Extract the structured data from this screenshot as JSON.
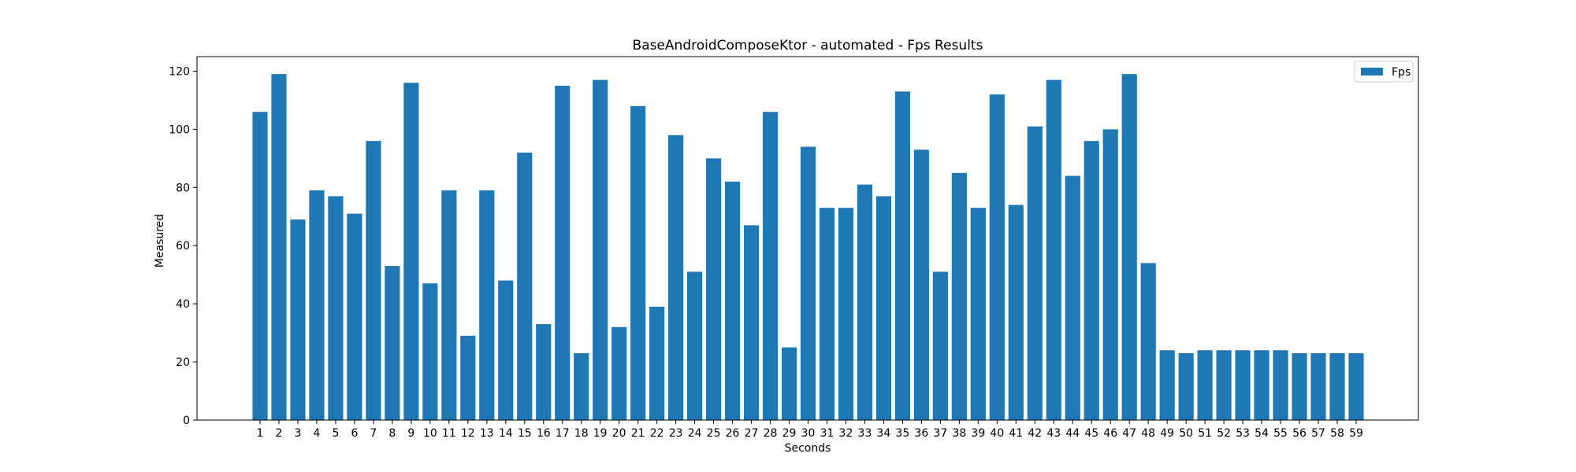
{
  "chart_data": {
    "type": "bar",
    "title": "BaseAndroidComposeKtor - automated - Fps Results",
    "xlabel": "Seconds",
    "ylabel": "Measured",
    "ylim": [
      0,
      125
    ],
    "yticks": [
      0,
      20,
      40,
      60,
      80,
      100,
      120
    ],
    "grid": false,
    "legend_position": "top-right",
    "bar_color": "#1f77b4",
    "categories": [
      "1",
      "2",
      "3",
      "4",
      "5",
      "6",
      "7",
      "8",
      "9",
      "10",
      "11",
      "12",
      "13",
      "14",
      "15",
      "16",
      "17",
      "18",
      "19",
      "20",
      "21",
      "22",
      "23",
      "24",
      "25",
      "26",
      "27",
      "28",
      "29",
      "30",
      "31",
      "32",
      "33",
      "34",
      "35",
      "36",
      "37",
      "38",
      "39",
      "40",
      "41",
      "42",
      "43",
      "44",
      "45",
      "46",
      "47",
      "48",
      "49",
      "50",
      "51",
      "52",
      "53",
      "54",
      "55",
      "56",
      "57",
      "58",
      "59"
    ],
    "series": [
      {
        "name": "Fps",
        "values": [
          106,
          119,
          69,
          79,
          77,
          71,
          96,
          53,
          116,
          47,
          79,
          29,
          79,
          48,
          92,
          33,
          115,
          23,
          117,
          32,
          108,
          39,
          98,
          51,
          90,
          82,
          67,
          106,
          25,
          94,
          73,
          73,
          81,
          77,
          113,
          93,
          51,
          85,
          73,
          112,
          74,
          101,
          117,
          84,
          96,
          100,
          119,
          54,
          24,
          23,
          24,
          24,
          24,
          24,
          24,
          23,
          23,
          23,
          23
        ]
      }
    ]
  }
}
